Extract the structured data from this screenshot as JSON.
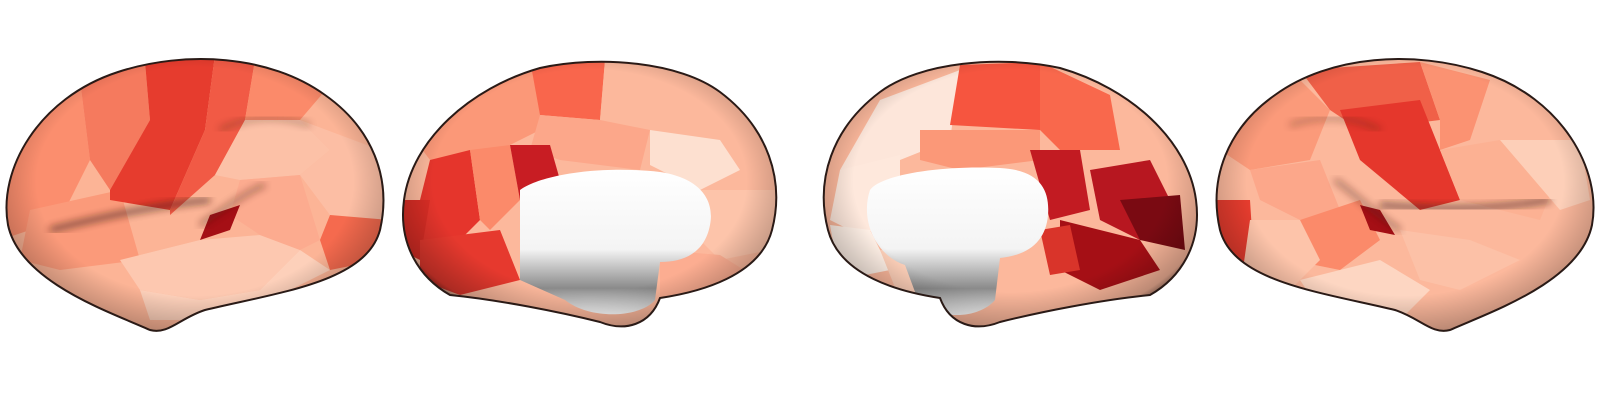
{
  "figure": {
    "kind": "cortical surface parcellation rendering",
    "views": [
      {
        "id": "left-lateral",
        "hemisphere": "left",
        "view": "lateral"
      },
      {
        "id": "left-medial",
        "hemisphere": "left",
        "view": "medial"
      },
      {
        "id": "right-medial",
        "hemisphere": "right",
        "view": "medial"
      },
      {
        "id": "right-lateral",
        "hemisphere": "right",
        "view": "lateral"
      }
    ],
    "colormap": {
      "name": "Reds",
      "stops": [
        "#fff5ef",
        "#fdd3bd",
        "#fcae91",
        "#fb8a6a",
        "#f6553f",
        "#d92d25",
        "#a50f15",
        "#67000d"
      ]
    },
    "medial_wall_color": "#ffffff",
    "background_color": "#ffffff"
  }
}
